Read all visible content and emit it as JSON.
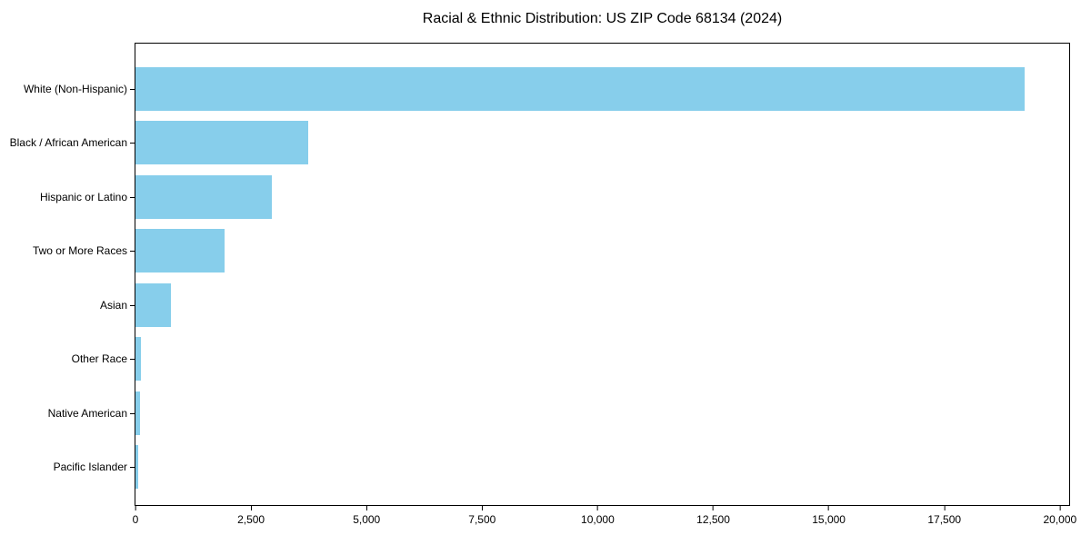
{
  "figure": {
    "title": "Racial & Ethnic Distribution: US ZIP Code 68134 (2024)"
  },
  "colors": {
    "bar": "#87CEEB",
    "axis": "#000000",
    "text": "#000000",
    "background": "#FFFFFF"
  },
  "chart_data": {
    "type": "bar",
    "orientation": "horizontal",
    "title": "Racial & Ethnic Distribution: US ZIP Code 68134 (2024)",
    "categories": [
      "White (Non-Hispanic)",
      "Black / African American",
      "Hispanic or Latino",
      "Two or More Races",
      "Asian",
      "Other Race",
      "Native American",
      "Pacific Islander"
    ],
    "values": [
      19240,
      3730,
      2950,
      1930,
      760,
      120,
      90,
      50
    ],
    "bar_color": "#87CEEB",
    "xlabel": "",
    "ylabel": "",
    "xlim": [
      0,
      20200
    ],
    "xticks": [
      0,
      2500,
      5000,
      7500,
      10000,
      12500,
      15000,
      17500,
      20000
    ],
    "xtick_labels": [
      "0",
      "2,500",
      "5,000",
      "7,500",
      "10,000",
      "12,500",
      "15,000",
      "17,500",
      "20,000"
    ],
    "grid": false,
    "legend": "none"
  }
}
